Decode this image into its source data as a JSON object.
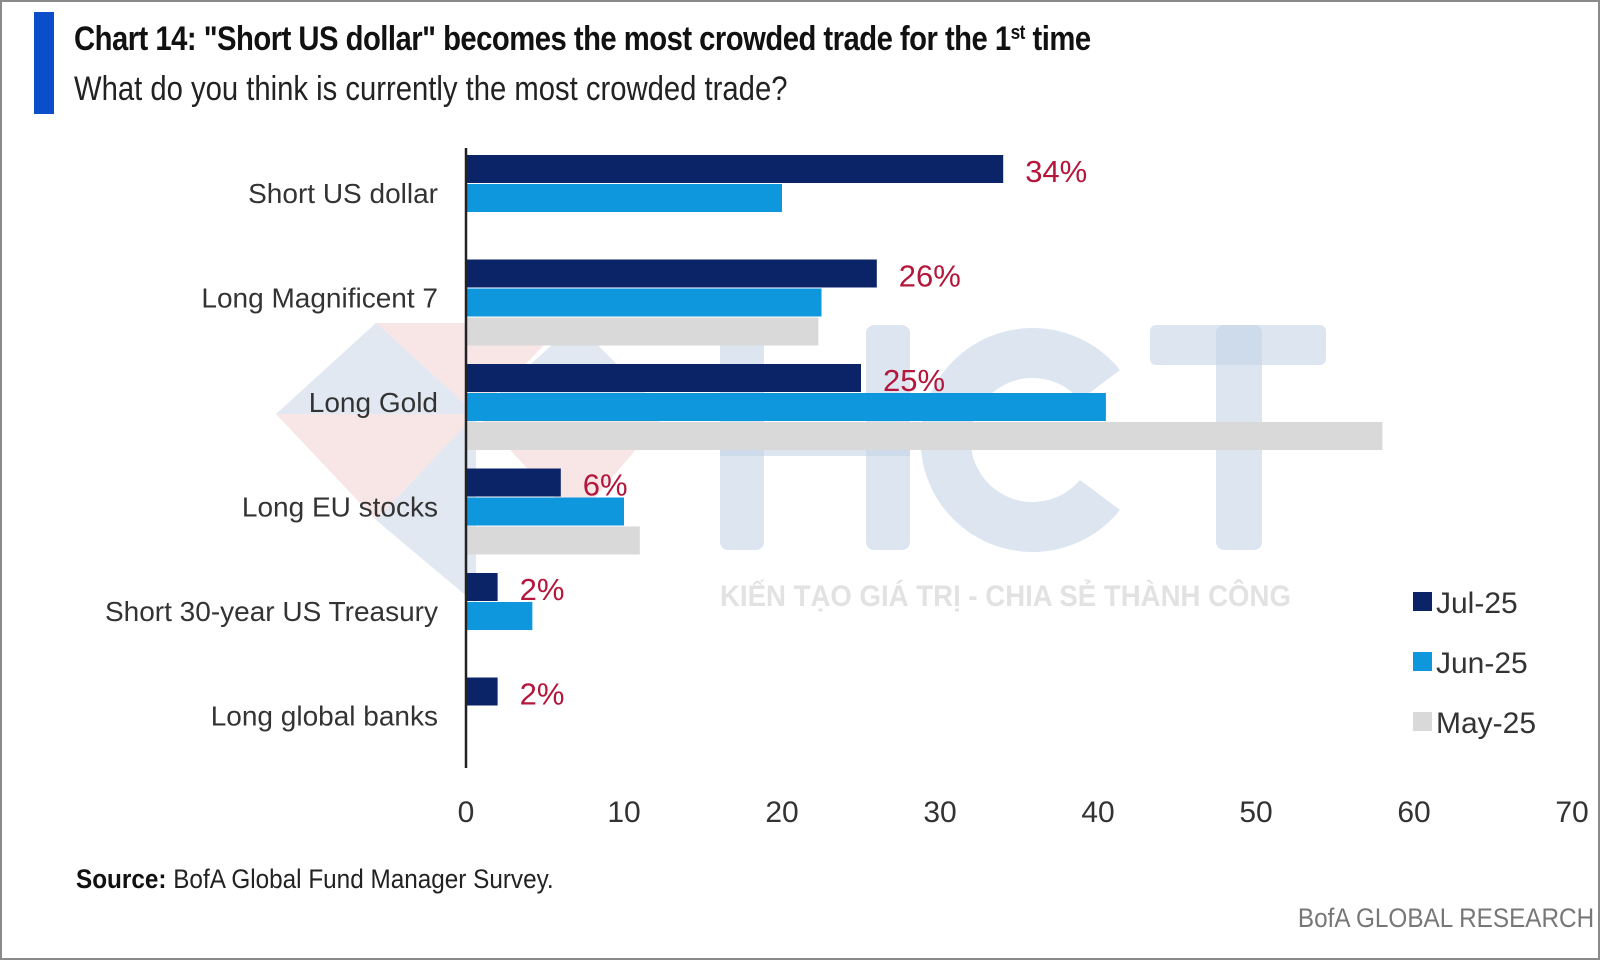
{
  "header": {
    "title": "Chart 14: \"Short US dollar\" becomes the most crowded trade for the 1",
    "title_sup": "st",
    "title_end": " time",
    "subtitle": "What do you think is currently the most crowded trade?"
  },
  "footer": {
    "source_label": "Source:",
    "source_text": " BofA Global Fund Manager Survey.",
    "brand": "BofA GLOBAL RESEARCH"
  },
  "watermark": {
    "logo_text": "HCT",
    "tagline": "KIẾN TẠO GIÁ TRỊ - CHIA SẺ THÀNH CÔNG"
  },
  "colors": {
    "jul": "#0b2468",
    "jun": "#0f97dd",
    "may": "#d9d9d9",
    "label": "#b5163b",
    "accent": "#0a4fc9"
  },
  "chart_data": {
    "type": "bar",
    "orientation": "horizontal",
    "title": "Chart 14: \"Short US dollar\" becomes the most crowded trade for the 1st time",
    "subtitle": "What do you think is currently the most crowded trade?",
    "xlabel": "",
    "ylabel": "",
    "xlim": [
      0,
      70
    ],
    "xticks": [
      "0",
      "10",
      "20",
      "30",
      "40",
      "50",
      "60",
      "70"
    ],
    "grid": false,
    "legend_position": "right",
    "categories": [
      "Short US dollar",
      "Long Magnificent 7",
      "Long Gold",
      "Long EU stocks",
      "Short 30-year US Treasury",
      "Long global banks"
    ],
    "series": [
      {
        "name": "Jul-25",
        "values": [
          34,
          26,
          25,
          6,
          2,
          2
        ]
      },
      {
        "name": "Jun-25",
        "values": [
          20,
          22.5,
          40.5,
          10,
          4.2,
          null
        ]
      },
      {
        "name": "May-25",
        "values": [
          null,
          22.3,
          58,
          11,
          null,
          null
        ]
      }
    ],
    "data_labels": [
      "34%",
      "26%",
      "25%",
      "6%",
      "2%",
      "2%"
    ]
  }
}
